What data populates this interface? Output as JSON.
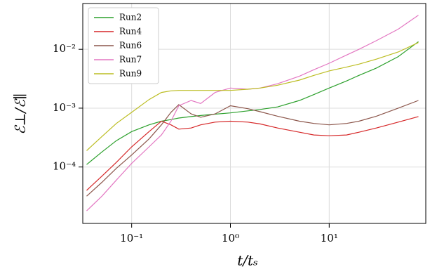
{
  "chart_data": {
    "type": "line",
    "x_label": "t/tₛ",
    "y_label": "ℰ⊥/ℰ∥",
    "x": [
      0.035,
      0.05,
      0.07,
      0.1,
      0.15,
      0.2,
      0.25,
      0.3,
      0.4,
      0.5,
      0.7,
      1,
      1.5,
      2,
      3,
      5,
      7,
      10,
      15,
      20,
      30,
      50,
      80
    ],
    "series": [
      {
        "name": "Run2",
        "color": "#2ca02c",
        "values": [
          0.00011,
          0.00018,
          0.00028,
          0.0004,
          0.00052,
          0.0006,
          0.00064,
          0.00068,
          0.00072,
          0.00075,
          0.00079,
          0.00083,
          0.0009,
          0.00095,
          0.00105,
          0.00135,
          0.0017,
          0.0022,
          0.0029,
          0.0036,
          0.0048,
          0.0075,
          0.0135
        ]
      },
      {
        "name": "Run4",
        "color": "#d62728",
        "values": [
          4e-05,
          7e-05,
          0.00012,
          0.00022,
          0.0004,
          0.0006,
          0.00052,
          0.00044,
          0.00046,
          0.00052,
          0.00058,
          0.0006,
          0.00058,
          0.00054,
          0.00046,
          0.00039,
          0.00035,
          0.00034,
          0.00035,
          0.00039,
          0.00046,
          0.00058,
          0.00072
        ]
      },
      {
        "name": "Run6",
        "color": "#8c564b",
        "values": [
          3.2e-05,
          5.5e-05,
          9.5e-05,
          0.00016,
          0.0003,
          0.00052,
          0.00085,
          0.00115,
          0.0008,
          0.0007,
          0.0008,
          0.0011,
          0.00098,
          0.00087,
          0.00073,
          0.0006,
          0.00055,
          0.00052,
          0.00055,
          0.0006,
          0.00073,
          0.001,
          0.00135
        ]
      },
      {
        "name": "Run7",
        "color": "#e377c2",
        "values": [
          1.8e-05,
          3.2e-05,
          6e-05,
          0.000115,
          0.00022,
          0.00035,
          0.0006,
          0.0011,
          0.00135,
          0.0012,
          0.00185,
          0.0022,
          0.0021,
          0.0022,
          0.0026,
          0.0035,
          0.0045,
          0.0058,
          0.008,
          0.01,
          0.014,
          0.022,
          0.038
        ]
      },
      {
        "name": "Run9",
        "color": "#bcbd22",
        "values": [
          0.00019,
          0.00033,
          0.00055,
          0.00085,
          0.0014,
          0.00185,
          0.00197,
          0.002,
          0.002,
          0.002,
          0.002,
          0.002,
          0.0021,
          0.0022,
          0.00245,
          0.003,
          0.0036,
          0.0043,
          0.005,
          0.0056,
          0.0068,
          0.009,
          0.013
        ]
      }
    ],
    "xlim": [
      0.032,
      95
    ],
    "ylim": [
      1.1e-05,
      0.06
    ],
    "xticks": [
      {
        "value": 0.1,
        "label": "10⁻¹"
      },
      {
        "value": 1,
        "label": "10⁰"
      },
      {
        "value": 10,
        "label": "10¹"
      }
    ],
    "yticks": [
      {
        "value": 0.0001,
        "label": "10⁻⁴"
      },
      {
        "value": 0.001,
        "label": "10⁻³"
      },
      {
        "value": 0.01,
        "label": "10⁻²"
      }
    ],
    "x_scale": "log",
    "y_scale": "log",
    "grid": true,
    "legend": "upper left"
  }
}
